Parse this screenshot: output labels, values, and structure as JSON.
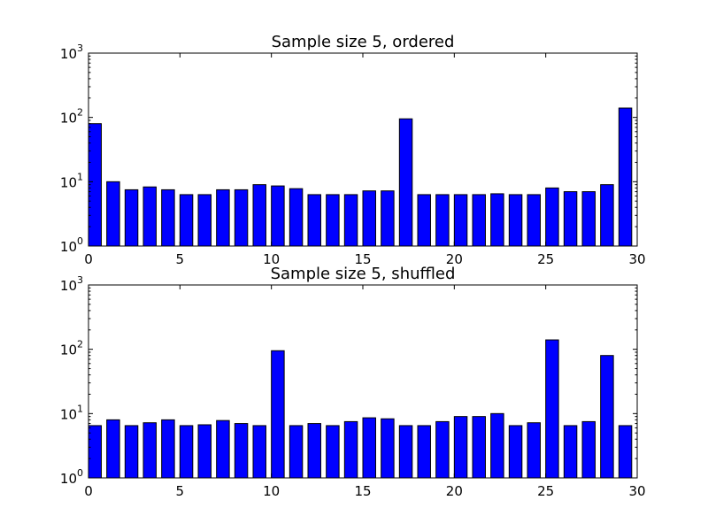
{
  "chart_data": [
    {
      "type": "bar",
      "title": "Sample size 5, ordered",
      "xlabel": "",
      "ylabel": "",
      "yscale": "log",
      "xlim": [
        0,
        30
      ],
      "ylim": [
        1,
        1000
      ],
      "grid": false,
      "bar_color": "#0000ff",
      "bar_width": 0.7,
      "x": [
        0,
        1,
        2,
        3,
        4,
        5,
        6,
        7,
        8,
        9,
        10,
        11,
        12,
        13,
        14,
        15,
        16,
        17,
        18,
        19,
        20,
        21,
        22,
        23,
        24,
        25,
        26,
        27,
        28,
        29
      ],
      "values": [
        80,
        10,
        7.5,
        8.3,
        7.5,
        6.3,
        6.3,
        7.5,
        7.5,
        9,
        8.6,
        7.8,
        6.3,
        6.3,
        6.3,
        7.2,
        7.2,
        95,
        6.3,
        6.3,
        6.3,
        6.3,
        6.5,
        6.3,
        6.3,
        8,
        7,
        7,
        9,
        140
      ],
      "x_ticks": [
        0,
        5,
        10,
        15,
        20,
        25,
        30
      ],
      "x_tick_labels": [
        "0",
        "5",
        "10",
        "15",
        "20",
        "25",
        "30"
      ],
      "y_ticks": [
        1,
        10,
        100,
        1000
      ],
      "y_tick_labels": [
        {
          "base": "10",
          "exp": "0"
        },
        {
          "base": "10",
          "exp": "1"
        },
        {
          "base": "10",
          "exp": "2"
        },
        {
          "base": "10",
          "exp": "3"
        }
      ]
    },
    {
      "type": "bar",
      "title": "Sample size 5, shuffled",
      "xlabel": "",
      "ylabel": "",
      "yscale": "log",
      "xlim": [
        0,
        30
      ],
      "ylim": [
        1,
        1000
      ],
      "grid": false,
      "bar_color": "#0000ff",
      "bar_width": 0.7,
      "x": [
        0,
        1,
        2,
        3,
        4,
        5,
        6,
        7,
        8,
        9,
        10,
        11,
        12,
        13,
        14,
        15,
        16,
        17,
        18,
        19,
        20,
        21,
        22,
        23,
        24,
        25,
        26,
        27,
        28,
        29
      ],
      "values": [
        6.5,
        8,
        6.5,
        7.2,
        8,
        6.5,
        6.7,
        7.8,
        7,
        6.5,
        95,
        6.5,
        7,
        6.5,
        7.5,
        8.6,
        8.3,
        6.5,
        6.5,
        7.5,
        9,
        9,
        10,
        6.5,
        7.2,
        140,
        6.5,
        7.5,
        80,
        6.5
      ],
      "x_ticks": [
        0,
        5,
        10,
        15,
        20,
        25,
        30
      ],
      "x_tick_labels": [
        "0",
        "5",
        "10",
        "15",
        "20",
        "25",
        "30"
      ],
      "y_ticks": [
        1,
        10,
        100,
        1000
      ],
      "y_tick_labels": [
        {
          "base": "10",
          "exp": "0"
        },
        {
          "base": "10",
          "exp": "1"
        },
        {
          "base": "10",
          "exp": "2"
        },
        {
          "base": "10",
          "exp": "3"
        }
      ]
    }
  ]
}
